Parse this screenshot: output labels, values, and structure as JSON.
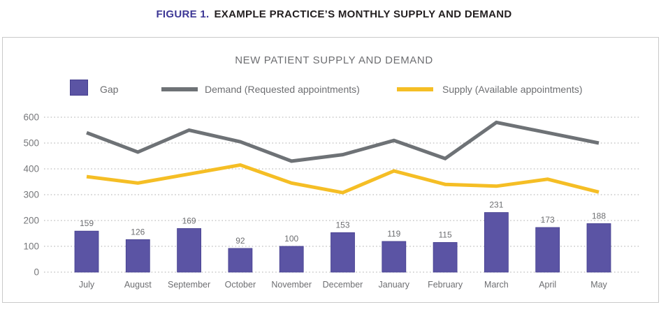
{
  "figure": {
    "label": "FIGURE 1.",
    "title": "EXAMPLE PRACTICE’S MONTHLY SUPPLY AND DEMAND"
  },
  "chart": {
    "title": "NEW PATIENT SUPPLY AND DEMAND",
    "legend": [
      {
        "swatch": "bar",
        "label": "Gap",
        "color": "#5B54A4"
      },
      {
        "swatch": "line",
        "label": "Demand (Requested appointments)",
        "color": "#6E7276"
      },
      {
        "swatch": "line",
        "label": "Supply (Available appointments)",
        "color": "#F5BE25"
      }
    ]
  },
  "chart_data": {
    "type": "bar",
    "subtype": "combo-bar-and-lines",
    "title": "NEW PATIENT SUPPLY AND DEMAND",
    "categories": [
      "July",
      "August",
      "September",
      "October",
      "November",
      "December",
      "January",
      "February",
      "March",
      "April",
      "May"
    ],
    "series": [
      {
        "name": "Gap",
        "type": "bar",
        "color": "#5B54A4",
        "values": [
          159,
          126,
          169,
          92,
          100,
          153,
          119,
          115,
          231,
          173,
          188
        ],
        "data_labels_shown": true
      },
      {
        "name": "Demand (Requested appointments)",
        "type": "line",
        "color": "#6E7276",
        "values": [
          540,
          465,
          550,
          505,
          430,
          455,
          510,
          440,
          580,
          540,
          500
        ],
        "data_labels_shown": false
      },
      {
        "name": "Supply (Available appointments)",
        "type": "line",
        "color": "#F5BE25",
        "values": [
          370,
          345,
          380,
          415,
          345,
          308,
          392,
          340,
          333,
          360,
          310
        ],
        "data_labels_shown": false
      }
    ],
    "xlabel": "",
    "ylabel": "",
    "ylim": [
      0,
      600
    ],
    "y_ticks": [
      0,
      100,
      200,
      300,
      400,
      500,
      600
    ],
    "grid": "horizontal-dotted",
    "legend_position": "top"
  },
  "colors": {
    "bar_fill": "#5B54A4",
    "bar_border": "#453F8F",
    "demand_line": "#6E7276",
    "supply_line": "#F5BE25",
    "figure_label": "#3D3795",
    "figure_title_text": "#231F20",
    "muted_text": "#6D6E71",
    "axis_text": "#77787B",
    "gridline": "#BDBDBD",
    "box_border": "#C9C9C9"
  }
}
